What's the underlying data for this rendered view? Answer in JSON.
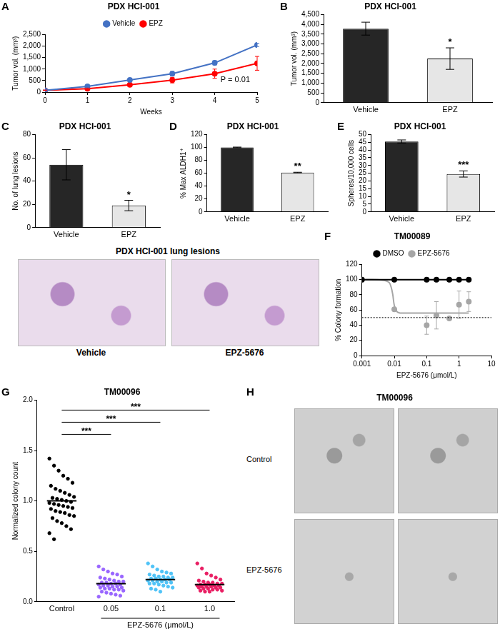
{
  "chart_data": [
    {
      "panel": "A",
      "type": "line",
      "title": "PDX HCI-001",
      "x_label": "Weeks",
      "y_label": "Tumor vol. (mm³)",
      "x": [
        0,
        1,
        2,
        3,
        4,
        5
      ],
      "xlim": [
        0,
        5
      ],
      "xticks": [
        0,
        1,
        2,
        3,
        4,
        5
      ],
      "ylim": [
        0,
        2500
      ],
      "yticks": [
        0,
        500,
        {
          "value": 1000,
          "label": "1,000"
        },
        {
          "value": 1500,
          "label": "1,500"
        },
        {
          "value": 2000,
          "label": "2,000"
        },
        {
          "value": 2500,
          "label": "2,500"
        }
      ],
      "series": [
        {
          "name": "Vehicle",
          "color": "#4472c4",
          "marker": "circle",
          "line_style": "solid",
          "values": [
            80,
            250,
            530,
            800,
            1270,
            2050
          ],
          "errors": [
            10,
            25,
            40,
            100,
            90,
            70
          ]
        },
        {
          "name": "EPZ",
          "color": "#ff0000",
          "marker": "circle",
          "line_style": "solid",
          "values": [
            80,
            150,
            320,
            520,
            800,
            1250
          ],
          "errors": [
            10,
            25,
            70,
            120,
            200,
            300
          ]
        }
      ],
      "annotation": "P = 0.01",
      "legend": "top",
      "grid": false
    },
    {
      "panel": "B",
      "type": "bar",
      "title": "PDX HCI-001",
      "y_label": "Tumor vol. (mm³)",
      "categories": [
        "Vehicle",
        "EPZ"
      ],
      "values": [
        3780,
        2250
      ],
      "errors": [
        330,
        550
      ],
      "colors": [
        "#262626",
        "#e6e6e6"
      ],
      "significance": [
        null,
        "*"
      ],
      "ylim": [
        0,
        4500
      ],
      "yticks": [
        0,
        500,
        {
          "value": 1000,
          "label": "1,000"
        },
        {
          "value": 1500,
          "label": "1,500"
        },
        {
          "value": 2000,
          "label": "2,000"
        },
        {
          "value": 2500,
          "label": "2,500"
        },
        {
          "value": 3000,
          "label": "3,000"
        },
        {
          "value": 3500,
          "label": "3,500"
        },
        {
          "value": 4000,
          "label": "4,000"
        },
        {
          "value": 4500,
          "label": "4,500"
        }
      ],
      "grid": false
    },
    {
      "panel": "C",
      "type": "bar",
      "title": "PDX HCI-001",
      "y_label": "No. of lung lesions",
      "categories": [
        "Vehicle",
        "EPZ"
      ],
      "values": [
        54,
        19
      ],
      "errors": [
        13,
        4.5
      ],
      "colors": [
        "#262626",
        "#e6e6e6"
      ],
      "significance": [
        null,
        "*"
      ],
      "ylim": [
        0,
        80
      ],
      "yticks": [
        0,
        20,
        40,
        60,
        80
      ],
      "grid": false
    },
    {
      "panel": "D",
      "type": "bar",
      "title": "PDX HCI-001",
      "y_label": "% Max ALDH1⁺",
      "categories": [
        "Vehicle",
        "EPZ"
      ],
      "values": [
        100,
        61
      ],
      "errors": [
        0.5,
        0.5
      ],
      "colors": [
        "#262626",
        "#e6e6e6"
      ],
      "significance": [
        null,
        "**"
      ],
      "ylim": [
        0,
        120
      ],
      "yticks": [
        0,
        20,
        40,
        60,
        80,
        100,
        120
      ],
      "grid": false
    },
    {
      "panel": "E",
      "type": "bar",
      "title": "PDX HCI-001",
      "y_label": "Spheres/10,000 cells",
      "categories": [
        "Vehicle",
        "EPZ"
      ],
      "values": [
        45.5,
        24.5
      ],
      "errors": [
        1,
        2
      ],
      "colors": [
        "#262626",
        "#e6e6e6"
      ],
      "significance": [
        null,
        "***"
      ],
      "ylim": [
        0,
        50
      ],
      "yticks": [
        0,
        5,
        10,
        15,
        20,
        25,
        30,
        35,
        40,
        45,
        50
      ],
      "grid": false
    },
    {
      "panel": "F",
      "type": "line",
      "title": "TM00089",
      "x_label": "EPZ-5676 (μmol/L)",
      "y_label": "% Colony formation",
      "log": "x",
      "xlim": [
        0.001,
        10
      ],
      "xticks": [
        0.001,
        0.01,
        0.1,
        1,
        10
      ],
      "ylim": [
        0,
        120
      ],
      "yticks": [
        0,
        20,
        40,
        60,
        80,
        100,
        120
      ],
      "x": [
        0.001,
        0.01,
        0.1,
        0.2,
        0.5,
        1,
        2
      ],
      "series": [
        {
          "name": "DMSO",
          "color": "#000000",
          "marker": "circle",
          "line_style": "solid",
          "values": [
            100,
            100,
            100,
            100,
            100,
            100,
            100
          ]
        },
        {
          "name": "EPZ-5676",
          "color": "#a6a6a6",
          "marker": "circle",
          "line_style": "none",
          "values": [
            100,
            61,
            40,
            53,
            49,
            67,
            71
          ],
          "errors": [
            null,
            null,
            12,
            18,
            null,
            18,
            13
          ]
        }
      ],
      "fit": {
        "color": "#a6a6a6",
        "x": [
          0.001,
          0.003,
          0.005,
          0.007,
          0.008,
          0.009,
          0.01,
          0.012,
          0.015,
          0.02,
          0.05,
          0.1,
          0.5,
          1,
          2
        ],
        "values": [
          100,
          100,
          99,
          96,
          90,
          80,
          66,
          58,
          56,
          56,
          56,
          56,
          56,
          56,
          56
        ]
      },
      "threshold": 50,
      "legend": "top",
      "grid": false
    },
    {
      "panel": "G",
      "type": "scatter",
      "title": "TM00096",
      "x_label": "EPZ-5676 (μmol/L)",
      "y_label": "Normalized colony count",
      "categories": [
        "Control",
        "0.05",
        "0.1",
        "1.0"
      ],
      "colors": [
        "#000000",
        "#9966ff",
        "#4fc3f7",
        "#e91e63"
      ],
      "ylim": [
        0,
        2.0
      ],
      "yticks": [
        {
          "value": 0,
          "label": "0.0"
        },
        0.5,
        {
          "value": 1,
          "label": "1.0"
        },
        1.5,
        {
          "value": 2,
          "label": "2.0"
        }
      ],
      "points": [
        [
          1.42,
          1.35,
          1.3,
          1.25,
          1.22,
          1.18,
          1.15,
          1.12,
          1.1,
          1.08,
          1.06,
          1.04,
          1.03,
          1.02,
          1.01,
          1.0,
          0.99,
          0.98,
          0.97,
          0.96,
          0.95,
          0.94,
          0.93,
          0.92,
          0.9,
          0.89,
          0.88,
          0.86,
          0.85,
          0.83,
          0.8,
          0.78,
          0.75,
          0.72,
          0.68,
          0.62
        ],
        [
          0.35,
          0.32,
          0.3,
          0.28,
          0.27,
          0.25,
          0.24,
          0.23,
          0.22,
          0.21,
          0.2,
          0.2,
          0.19,
          0.19,
          0.18,
          0.18,
          0.17,
          0.17,
          0.16,
          0.16,
          0.15,
          0.15,
          0.14,
          0.14,
          0.13,
          0.13,
          0.12,
          0.12,
          0.11,
          0.1,
          0.09,
          0.08,
          0.07,
          0.06,
          0.05
        ],
        [
          0.38,
          0.35,
          0.32,
          0.3,
          0.29,
          0.28,
          0.27,
          0.26,
          0.25,
          0.25,
          0.24,
          0.24,
          0.23,
          0.23,
          0.22,
          0.22,
          0.22,
          0.21,
          0.21,
          0.2,
          0.2,
          0.19,
          0.19,
          0.18,
          0.18,
          0.17,
          0.16,
          0.15,
          0.14,
          0.13,
          0.12,
          0.1
        ],
        [
          0.38,
          0.33,
          0.28,
          0.26,
          0.24,
          0.22,
          0.21,
          0.2,
          0.19,
          0.19,
          0.18,
          0.18,
          0.17,
          0.17,
          0.17,
          0.16,
          0.16,
          0.16,
          0.15,
          0.15,
          0.15,
          0.14,
          0.14,
          0.14,
          0.13,
          0.13,
          0.12,
          0.12,
          0.11,
          0.11,
          0.1,
          0.1
        ]
      ],
      "means": [
        1.0,
        0.18,
        0.22,
        0.17
      ],
      "comparisons": [
        {
          "from": "Control",
          "to": "0.05",
          "label": "***"
        },
        {
          "from": "Control",
          "to": "0.1",
          "label": "***"
        },
        {
          "from": "Control",
          "to": "1.0",
          "label": "***"
        }
      ],
      "grid": false
    }
  ],
  "figures": {
    "histology": {
      "title": "PDX HCI-001 lung lesions",
      "labels": [
        "Vehicle",
        "EPZ-5676"
      ]
    },
    "micrographs": {
      "panel": "H",
      "title": "TM00096",
      "labels": [
        "Control",
        "EPZ-5676"
      ]
    }
  }
}
